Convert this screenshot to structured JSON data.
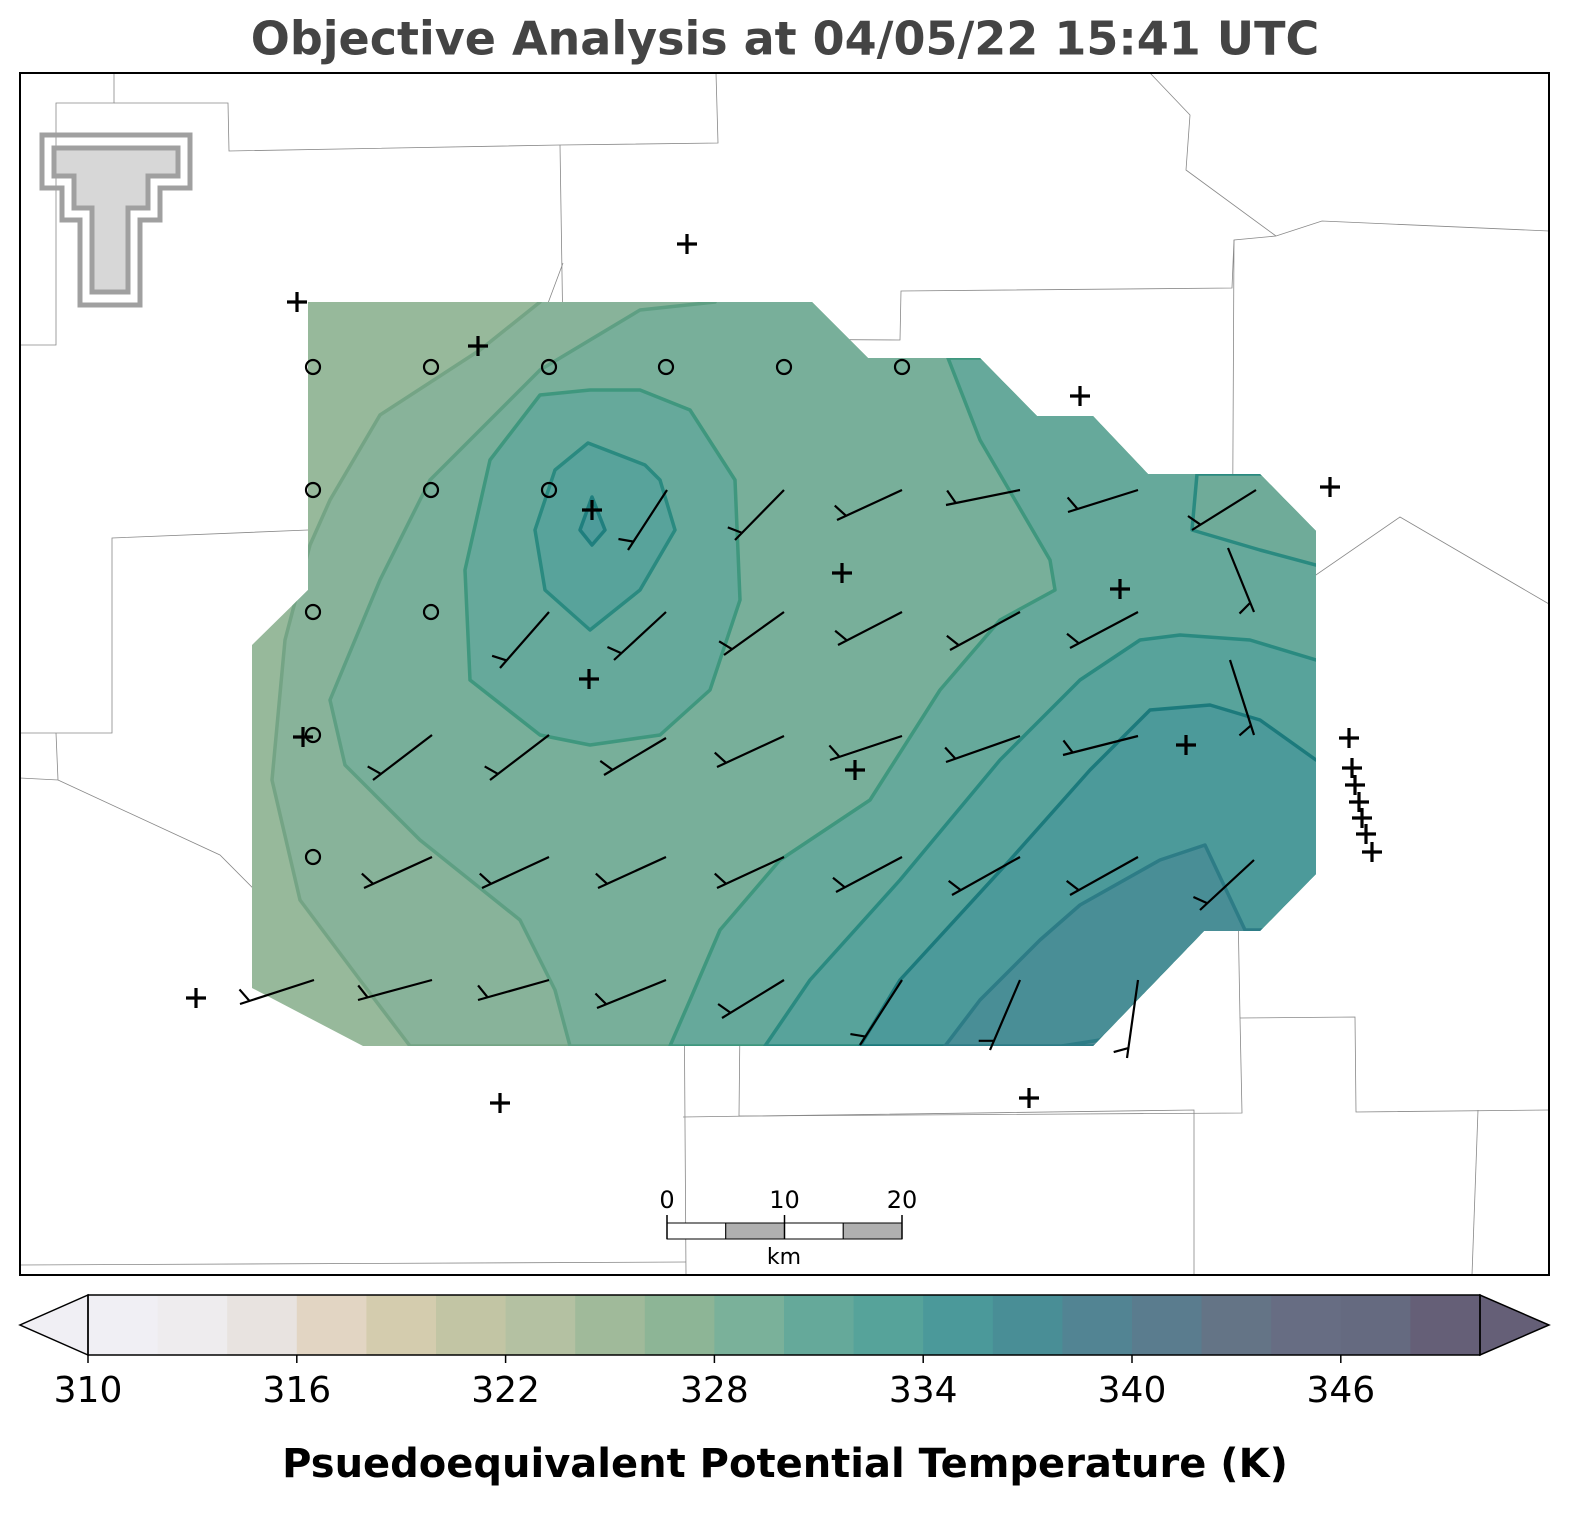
{
  "title": "Objective Analysis at 04/05/22 15:41 UTC",
  "colorbar": {
    "label": "Psuedoequivalent Potential Temperature (K)",
    "min": 310,
    "max": 350,
    "ticks": [
      310,
      316,
      322,
      328,
      334,
      340,
      346
    ],
    "colors": [
      "#f0eff4",
      "#eeecee",
      "#e8e3e0",
      "#e2d5c3",
      "#d4ccae",
      "#c2c5a4",
      "#b4c1a2",
      "#a0ba9a",
      "#8db596",
      "#7ab19a",
      "#65a99a",
      "#56a39a",
      "#4b999a",
      "#498e96",
      "#528493",
      "#5a7c8e",
      "#647486",
      "#676d83",
      "#656a80",
      "#655f77"
    ],
    "extend": "both"
  },
  "scale_bar": {
    "ticks": [
      0,
      10,
      20
    ],
    "unit": "km"
  }
}
